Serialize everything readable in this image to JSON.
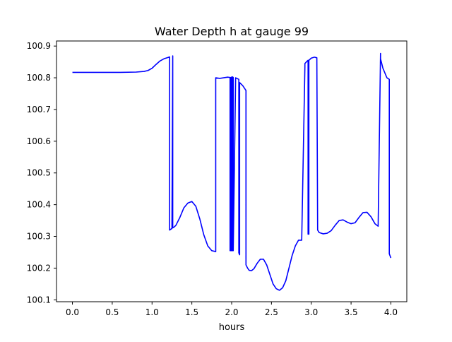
{
  "chart_data": {
    "type": "line",
    "title": "Water Depth h at gauge 99",
    "xlabel": "hours",
    "ylabel": "",
    "xlim": [
      -0.2,
      4.2
    ],
    "ylim": [
      100.094,
      100.916
    ],
    "x_ticks": [
      0.0,
      0.5,
      1.0,
      1.5,
      2.0,
      2.5,
      3.0,
      3.5,
      4.0
    ],
    "x_tick_labels": [
      "0.0",
      "0.5",
      "1.0",
      "1.5",
      "2.0",
      "2.5",
      "3.0",
      "3.5",
      "4.0"
    ],
    "y_ticks": [
      100.1,
      100.2,
      100.3,
      100.4,
      100.5,
      100.6,
      100.7,
      100.8,
      100.9
    ],
    "y_tick_labels": [
      "100.1",
      "100.2",
      "100.3",
      "100.4",
      "100.5",
      "100.6",
      "100.7",
      "100.8",
      "100.9"
    ],
    "grid": false,
    "legend": "none",
    "series": [
      {
        "color": "#0000ff",
        "x": [
          0.0,
          0.2,
          0.4,
          0.6,
          0.8,
          0.9,
          0.95,
          1.0,
          1.05,
          1.1,
          1.15,
          1.2,
          1.22,
          1.22,
          1.25,
          1.26,
          1.26,
          1.28,
          1.3,
          1.35,
          1.4,
          1.45,
          1.5,
          1.55,
          1.6,
          1.65,
          1.7,
          1.75,
          1.8,
          1.8,
          1.85,
          1.9,
          1.95,
          1.98,
          1.98,
          1.99,
          1.99,
          2.0,
          2.0,
          2.01,
          2.01,
          2.02,
          2.02,
          2.05,
          2.09,
          2.09,
          2.1,
          2.1,
          2.14,
          2.18,
          2.18,
          2.2,
          2.22,
          2.25,
          2.28,
          2.32,
          2.36,
          2.4,
          2.44,
          2.48,
          2.52,
          2.56,
          2.6,
          2.64,
          2.68,
          2.72,
          2.76,
          2.8,
          2.84,
          2.88,
          2.92,
          2.92,
          2.95,
          2.96,
          2.96,
          2.97,
          2.97,
          3.0,
          3.04,
          3.07,
          3.08,
          3.1,
          3.15,
          3.2,
          3.25,
          3.3,
          3.35,
          3.4,
          3.45,
          3.5,
          3.55,
          3.6,
          3.65,
          3.7,
          3.75,
          3.8,
          3.84,
          3.87,
          3.87,
          3.9,
          3.95,
          3.98,
          3.98,
          4.0
        ],
        "y": [
          100.817,
          100.817,
          100.817,
          100.817,
          100.818,
          100.82,
          100.823,
          100.83,
          100.842,
          100.853,
          100.86,
          100.864,
          100.866,
          100.32,
          100.325,
          100.869,
          100.327,
          100.33,
          100.335,
          100.36,
          100.39,
          100.405,
          100.41,
          100.395,
          100.355,
          100.305,
          100.27,
          100.255,
          100.252,
          100.8,
          100.798,
          100.8,
          100.802,
          100.801,
          100.255,
          100.255,
          100.801,
          100.802,
          100.255,
          100.255,
          100.803,
          100.801,
          100.255,
          100.8,
          100.795,
          100.248,
          100.242,
          100.785,
          100.775,
          100.76,
          100.21,
          100.2,
          100.193,
          100.192,
          100.198,
          100.215,
          100.228,
          100.228,
          100.21,
          100.18,
          100.15,
          100.135,
          100.13,
          100.138,
          100.16,
          100.2,
          100.24,
          100.27,
          100.288,
          100.288,
          100.835,
          100.845,
          100.853,
          100.855,
          100.307,
          100.307,
          100.855,
          100.862,
          100.865,
          100.863,
          100.32,
          100.312,
          100.308,
          100.31,
          100.318,
          100.335,
          100.35,
          100.352,
          100.345,
          100.34,
          100.343,
          100.36,
          100.375,
          100.376,
          100.362,
          100.34,
          100.332,
          100.877,
          100.86,
          100.83,
          100.8,
          100.795,
          100.245,
          100.232
        ]
      }
    ]
  }
}
